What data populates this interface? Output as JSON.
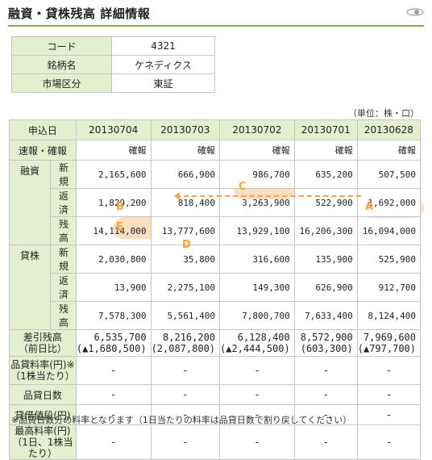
{
  "header": {
    "title": "融資・貸株残高 詳細情報",
    "rule_color": "#7eb33b",
    "badge_icon": "eye-swoosh-icon"
  },
  "summary": [
    {
      "label": "コード",
      "value": "4321"
    },
    {
      "label": "銘柄名",
      "value": "ケネディクス"
    },
    {
      "label": "市場区分",
      "value": "東証"
    }
  ],
  "unit_text": "（単位：株・口）",
  "main": {
    "col_header_label": "申込日",
    "dates": [
      "20130704",
      "20130703",
      "20130702",
      "20130701",
      "20130628"
    ],
    "status_label": "速報・確報",
    "status": [
      "確報",
      "確報",
      "確報",
      "確報",
      "確報"
    ],
    "groups": [
      {
        "name": "融資",
        "rows": [
          {
            "sub": "新規",
            "values": [
              "2,165,600",
              "666,900",
              "986,700",
              "635,200",
              "507,500"
            ]
          },
          {
            "sub": "返済",
            "values": [
              "1,829,200",
              "818,400",
              "3,263,900",
              "522,900",
              "1,692,000"
            ]
          },
          {
            "sub": "残高",
            "values": [
              "14,114,000",
              "13,777,600",
              "13,929,100",
              "16,206,300",
              "16,094,000"
            ]
          }
        ]
      },
      {
        "name": "貸株",
        "rows": [
          {
            "sub": "新規",
            "values": [
              "2,030,800",
              "35,800",
              "316,600",
              "135,900",
              "525,900"
            ]
          },
          {
            "sub": "返済",
            "values": [
              "13,900",
              "2,275,100",
              "149,300",
              "626,900",
              "912,700"
            ]
          },
          {
            "sub": "残高",
            "values": [
              "7,578,300",
              "5,561,400",
              "7,800,700",
              "7,633,400",
              "8,124,400"
            ]
          }
        ]
      }
    ],
    "diff_label_1": "差引残高",
    "diff_label_2": "（前日比）",
    "diff": [
      {
        "value": "6,535,700",
        "change": "(▲1,680,500)"
      },
      {
        "value": "8,216,200",
        "change": "(2,087,800)"
      },
      {
        "value": "6,128,400",
        "change": "(▲2,444,500)"
      },
      {
        "value": "8,572,900",
        "change": "(603,300)"
      },
      {
        "value": "7,969,600",
        "change": "(▲797,700)"
      }
    ],
    "fee_label_1": "品貸料率(円)※",
    "fee_label_2": "（1株当たり）",
    "fee": [
      "-",
      "-",
      "-",
      "-",
      "-"
    ],
    "days_label": "品貸日数",
    "days": [
      "-",
      "-",
      "-",
      "-",
      "-"
    ],
    "lending_label": "貸借値段(円)",
    "lending": [
      "-",
      "-",
      "-",
      "-",
      "-"
    ],
    "max_label_1": "最高料率(円)",
    "max_label_2": "（1日、1株当たり）",
    "max": [
      "-",
      "-",
      "-",
      "-",
      "-"
    ]
  },
  "annotations": {
    "markers": [
      "A",
      "B",
      "C",
      "D",
      "E"
    ],
    "highlight_color": "#f5a23a"
  },
  "footnote": "※品貸日数分の料率となります（1日当たりの料率は品貸日数で割り戻してください）"
}
